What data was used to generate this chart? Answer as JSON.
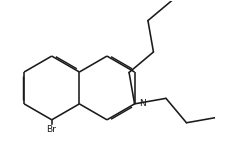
{
  "bg_color": "#ffffff",
  "line_color": "#1a1a1a",
  "line_width": 1.15,
  "dbo": 0.018,
  "fs_label": 6.5,
  "bl": 0.38
}
